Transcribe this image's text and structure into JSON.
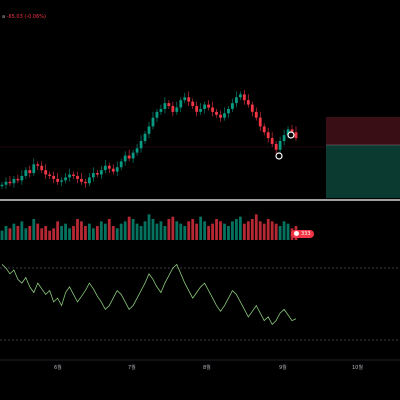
{
  "legend": {
    "symbol": "a",
    "change": "-65.03 (-0.06%)"
  },
  "colors": {
    "up": "#089981",
    "down": "#f23645",
    "line": "#89c97a",
    "grid": "#2a2e39",
    "text": "#b2b5be"
  },
  "volume_badge": {
    "text": "333"
  },
  "x_axis": [
    {
      "label": "6월"
    },
    {
      "label": "7월"
    },
    {
      "label": "8월"
    },
    {
      "label": "9월"
    },
    {
      "label": "10월"
    }
  ],
  "chart_data": {
    "type": "candlestick",
    "candles_close": [
      20,
      22,
      21,
      24,
      23,
      26,
      30,
      28,
      34,
      33,
      30,
      27,
      26,
      24,
      22,
      23,
      25,
      27,
      26,
      24,
      22,
      21,
      25,
      28,
      27,
      30,
      33,
      31,
      29,
      32,
      36,
      40,
      38,
      42,
      45,
      50,
      55,
      60,
      66,
      70,
      72,
      76,
      74,
      70,
      73,
      78,
      80,
      77,
      74,
      70,
      72,
      75,
      73,
      70,
      68,
      66,
      69,
      72,
      76,
      80,
      82,
      78,
      75,
      70,
      66,
      60,
      56,
      52,
      48,
      44,
      50,
      54,
      58,
      56,
      52
    ],
    "volume": [
      4,
      6,
      5,
      7,
      6,
      8,
      5,
      6,
      9,
      7,
      5,
      6,
      4,
      5,
      8,
      6,
      7,
      5,
      6,
      9,
      8,
      6,
      7,
      5,
      6,
      8,
      7,
      9,
      6,
      5,
      7,
      8,
      10,
      9,
      7,
      6,
      8,
      11,
      9,
      7,
      8,
      6,
      9,
      10,
      8,
      7,
      6,
      8,
      9,
      7,
      10,
      8,
      6,
      7,
      9,
      8,
      7,
      6,
      8,
      9,
      10,
      7,
      8,
      9,
      11,
      8,
      7,
      9,
      8,
      7,
      6,
      8,
      7,
      5,
      6
    ],
    "oscillator": [
      60,
      58,
      55,
      57,
      52,
      50,
      53,
      48,
      45,
      50,
      47,
      44,
      46,
      40,
      42,
      38,
      45,
      48,
      44,
      40,
      43,
      46,
      50,
      47,
      43,
      40,
      36,
      38,
      42,
      46,
      44,
      40,
      36,
      38,
      42,
      46,
      50,
      55,
      52,
      48,
      45,
      50,
      54,
      58,
      60,
      55,
      50,
      46,
      42,
      45,
      48,
      50,
      46,
      42,
      38,
      35,
      38,
      42,
      46,
      44,
      40,
      36,
      32,
      35,
      38,
      34,
      30,
      32,
      28,
      30,
      34,
      36,
      33,
      30,
      31
    ]
  }
}
